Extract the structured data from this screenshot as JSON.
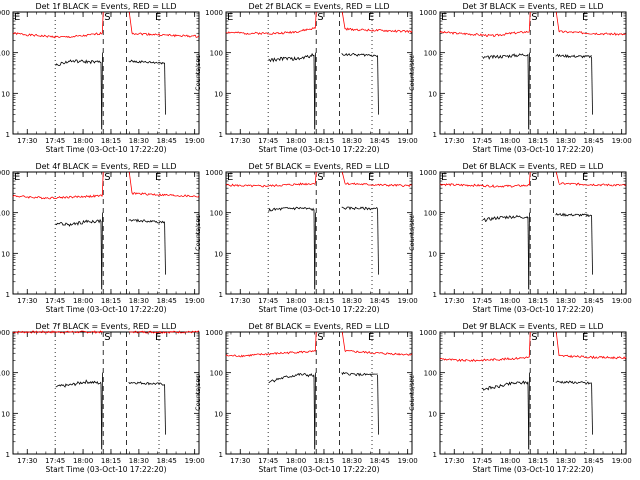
{
  "chart_data": [
    {
      "type": "line",
      "title": "Det 1f BLACK = Events, RED = LLD",
      "ylabel": "Counts/sec",
      "xlabel": "Start Time (03-Oct-10 17:22:20)",
      "x_ticks": [
        "17:30",
        "17:45",
        "18:00",
        "18:15",
        "18:30",
        "18:45",
        "19:00"
      ],
      "y_ticks": [
        "1",
        "10",
        "100",
        "1000"
      ],
      "ylim": [
        1,
        1000
      ],
      "log_y": true,
      "markers": {
        "left": "E",
        "mid": "S",
        "right": "E"
      },
      "series": [
        {
          "name": "Events",
          "color": "#000000",
          "seg1": [
            50,
            62,
            60,
            58
          ],
          "seg2": [
            62,
            58,
            56
          ]
        },
        {
          "name": "LLD",
          "color": "#ff0000",
          "base": [
            300,
            270,
            250,
            240,
            260,
            300
          ],
          "post": [
            300,
            270,
            250
          ]
        }
      ]
    },
    {
      "type": "line",
      "title": "Det 2f BLACK = Events, RED = LLD",
      "ylabel": "Counts/sec",
      "xlabel": "Start Time (03-Oct-10 17:22:20)",
      "x_ticks": [
        "17:30",
        "17:45",
        "18:00",
        "18:15",
        "18:30",
        "18:45",
        "19:00"
      ],
      "y_ticks": [
        "1",
        "10",
        "100",
        "1000"
      ],
      "ylim": [
        1,
        1000
      ],
      "log_y": true,
      "markers": {
        "left": "E",
        "mid": "S",
        "right": "E"
      },
      "series": [
        {
          "name": "Events",
          "color": "#000000",
          "seg1": [
            65,
            72,
            70,
            88
          ],
          "seg2": [
            92,
            88,
            86
          ]
        },
        {
          "name": "LLD",
          "color": "#ff0000",
          "base": [
            320,
            300,
            300,
            300,
            330,
            400
          ],
          "post": [
            380,
            350,
            330
          ]
        }
      ]
    },
    {
      "type": "line",
      "title": "Det 3f BLACK = Events, RED = LLD",
      "ylabel": "Counts/sec",
      "xlabel": "Start Time (03-Oct-10 17:22:20)",
      "x_ticks": [
        "17:30",
        "17:45",
        "18:00",
        "18:15",
        "18:30",
        "18:45",
        "19:00"
      ],
      "y_ticks": [
        "1",
        "10",
        "100",
        "1000"
      ],
      "ylim": [
        1,
        1000
      ],
      "log_y": true,
      "markers": {
        "left": "E",
        "mid": "S",
        "right": "E"
      },
      "series": [
        {
          "name": "Events",
          "color": "#000000",
          "seg1": [
            75,
            80,
            85,
            92
          ],
          "seg2": [
            85,
            82,
            80
          ]
        },
        {
          "name": "LLD",
          "color": "#ff0000",
          "base": [
            320,
            300,
            280,
            260,
            300,
            330
          ],
          "post": [
            330,
            300,
            280
          ]
        }
      ]
    },
    {
      "type": "line",
      "title": "Det 4f BLACK = Events, RED = LLD",
      "ylabel": "Counts/sec",
      "xlabel": "Start Time (03-Oct-10 17:22:20)",
      "x_ticks": [
        "17:30",
        "17:45",
        "18:00",
        "18:15",
        "18:30",
        "18:45",
        "19:00"
      ],
      "y_ticks": [
        "1",
        "10",
        "100",
        "1000"
      ],
      "ylim": [
        1,
        1000
      ],
      "log_y": true,
      "markers": {
        "left": "E",
        "mid": "S",
        "right": "E"
      },
      "series": [
        {
          "name": "Events",
          "color": "#000000",
          "seg1": [
            55,
            50,
            60,
            62
          ],
          "seg2": [
            65,
            62,
            58
          ]
        },
        {
          "name": "LLD",
          "color": "#ff0000",
          "base": [
            260,
            240,
            230,
            240,
            250,
            260
          ],
          "post": [
            300,
            270,
            250
          ]
        }
      ]
    },
    {
      "type": "line",
      "title": "Det 5f BLACK = Events, RED = LLD",
      "ylabel": "Counts/sec",
      "xlabel": "Start Time (03-Oct-10 17:22:20)",
      "x_ticks": [
        "17:30",
        "17:45",
        "18:00",
        "18:15",
        "18:30",
        "18:45",
        "19:00"
      ],
      "y_ticks": [
        "1",
        "10",
        "100",
        "1000"
      ],
      "ylim": [
        1,
        1000
      ],
      "log_y": true,
      "markers": {
        "left": "E",
        "mid": "S",
        "right": "E"
      },
      "series": [
        {
          "name": "Events",
          "color": "#000000",
          "seg1": [
            115,
            125,
            130,
            120
          ],
          "seg2": [
            130,
            128,
            125
          ]
        },
        {
          "name": "LLD",
          "color": "#ff0000",
          "base": [
            480,
            460,
            450,
            470,
            500,
            520
          ],
          "post": [
            520,
            480,
            460
          ]
        }
      ]
    },
    {
      "type": "line",
      "title": "Det 6f BLACK = Events, RED = LLD",
      "ylabel": "Counts/sec",
      "xlabel": "Start Time (03-Oct-10 17:22:20)",
      "x_ticks": [
        "17:30",
        "17:45",
        "18:00",
        "18:15",
        "18:30",
        "18:45",
        "19:00"
      ],
      "y_ticks": [
        "1",
        "10",
        "100",
        "1000"
      ],
      "ylim": [
        1,
        1000
      ],
      "log_y": true,
      "markers": {
        "left": "E",
        "mid": "S",
        "right": "E"
      },
      "series": [
        {
          "name": "Events",
          "color": "#000000",
          "seg1": [
            65,
            75,
            80,
            78
          ],
          "seg2": [
            90,
            88,
            86
          ]
        },
        {
          "name": "LLD",
          "color": "#ff0000",
          "base": [
            500,
            480,
            470,
            450,
            450,
            470
          ],
          "post": [
            520,
            490,
            470
          ]
        }
      ]
    },
    {
      "type": "line",
      "title": "Det 7f BLACK = Events, RED = LLD",
      "ylabel": "Counts/sec",
      "xlabel": "Start Time (03-Oct-10 17:22:20)",
      "x_ticks": [
        "17:30",
        "17:45",
        "18:00",
        "18:15",
        "18:30",
        "18:45",
        "19:00"
      ],
      "y_ticks": [
        "1",
        "10",
        "100",
        "1000"
      ],
      "ylim": [
        1,
        1000
      ],
      "log_y": true,
      "markers": {
        "left": "",
        "mid": "S",
        "right": "E"
      },
      "series": [
        {
          "name": "Events",
          "color": "#000000",
          "seg1": [
            45,
            50,
            60,
            55
          ],
          "seg2": [
            58,
            55,
            52
          ]
        },
        {
          "name": "LLD",
          "color": "#ff0000",
          "base": [
            1000,
            1000,
            1000,
            1000,
            1000,
            1000
          ],
          "post": [
            1000,
            1000,
            1000
          ]
        }
      ]
    },
    {
      "type": "line",
      "title": "Det 8f BLACK = Events, RED = LLD",
      "ylabel": "Counts/sec",
      "xlabel": "Start Time (03-Oct-10 17:22:20)",
      "x_ticks": [
        "17:30",
        "17:45",
        "18:00",
        "18:15",
        "18:30",
        "18:45",
        "19:00"
      ],
      "y_ticks": [
        "1",
        "10",
        "100",
        "1000"
      ],
      "ylim": [
        1,
        1000
      ],
      "log_y": true,
      "markers": {
        "left": "",
        "mid": "S",
        "right": "E"
      },
      "series": [
        {
          "name": "Events",
          "color": "#000000",
          "seg1": [
            60,
            75,
            90,
            85
          ],
          "seg2": [
            95,
            90,
            88
          ]
        },
        {
          "name": "LLD",
          "color": "#ff0000",
          "base": [
            260,
            260,
            280,
            300,
            320,
            330
          ],
          "post": [
            340,
            300,
            280
          ]
        }
      ]
    },
    {
      "type": "line",
      "title": "Det 9f BLACK = Events, RED = LLD",
      "ylabel": "Counts/sec",
      "xlabel": "Start Time (03-Oct-10 17:22:20)",
      "x_ticks": [
        "17:30",
        "17:45",
        "18:00",
        "18:15",
        "18:30",
        "18:45",
        "19:00"
      ],
      "y_ticks": [
        "1",
        "10",
        "100",
        "1000"
      ],
      "ylim": [
        1,
        1000
      ],
      "log_y": true,
      "markers": {
        "left": "",
        "mid": "S",
        "right": "E"
      },
      "series": [
        {
          "name": "Events",
          "color": "#000000",
          "seg1": [
            40,
            45,
            55,
            58
          ],
          "seg2": [
            60,
            58,
            55
          ]
        },
        {
          "name": "LLD",
          "color": "#ff0000",
          "base": [
            220,
            200,
            200,
            210,
            220,
            240
          ],
          "post": [
            260,
            240,
            230
          ]
        }
      ]
    }
  ]
}
